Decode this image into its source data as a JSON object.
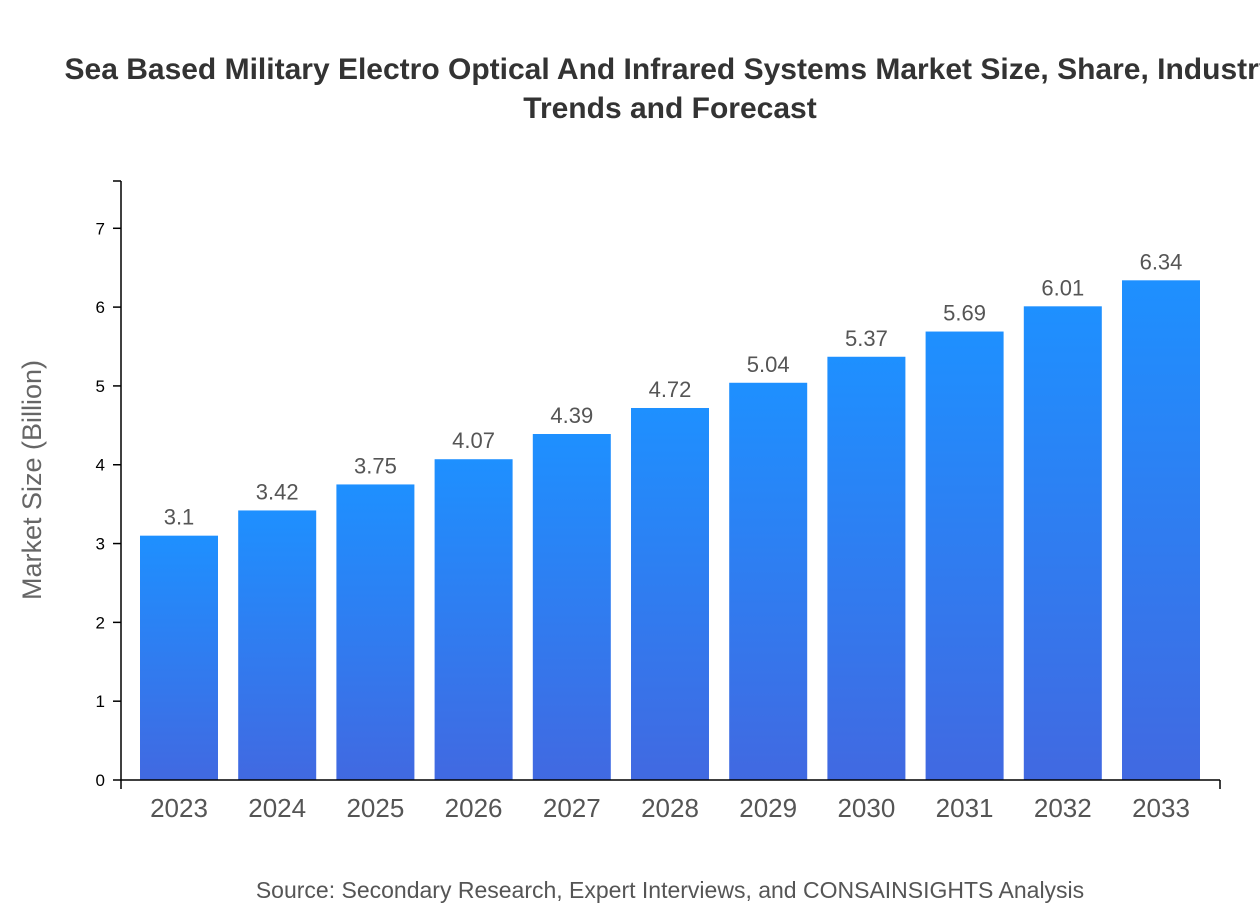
{
  "chart_data": {
    "type": "bar",
    "title": "Sea Based Military Electro Optical And Infrared Systems Market Size, Share, Industry Trends and Forecast",
    "xlabel": "",
    "ylabel": "Market Size (Billion)",
    "categories": [
      "2023",
      "2024",
      "2025",
      "2026",
      "2027",
      "2028",
      "2029",
      "2030",
      "2031",
      "2032",
      "2033"
    ],
    "values": [
      3.1,
      3.42,
      3.75,
      4.07,
      4.39,
      4.72,
      5.04,
      5.37,
      5.69,
      6.01,
      6.34
    ],
    "ylim": [
      0,
      7.6
    ],
    "yticks": [
      0,
      1,
      2,
      3,
      4,
      5,
      6,
      7
    ],
    "grid": false,
    "bar_gradient": {
      "top": "#1e90ff",
      "bottom": "#4169e1"
    },
    "source": "Source: Secondary Research, Expert Interviews, and CONSAINSIGHTS Analysis"
  }
}
